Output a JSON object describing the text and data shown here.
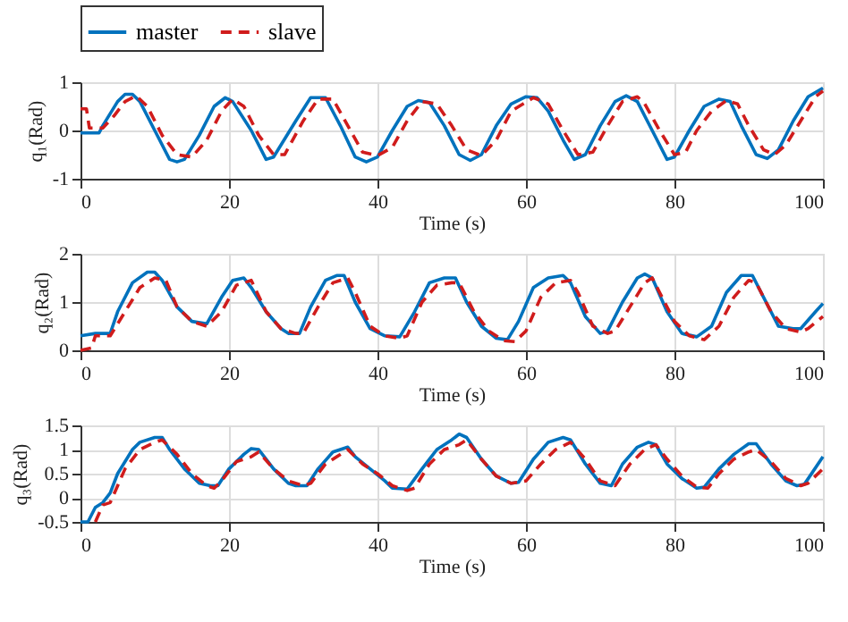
{
  "chart_data": [
    {
      "type": "line",
      "xlabel": "Time (s)",
      "ylabel": "q₁(Rad)",
      "xlim": [
        0,
        100
      ],
      "xticks": [
        0,
        20,
        40,
        60,
        80,
        100
      ],
      "ylim": [
        -1,
        1
      ],
      "yticks": [
        -1,
        0,
        1
      ],
      "grid": true,
      "legend": "top left",
      "series": [
        {
          "name": "master",
          "color": "#0072bd",
          "line_style": "solid",
          "x": [
            0,
            2.5,
            3,
            5,
            6,
            7,
            8,
            10,
            12,
            13,
            14,
            16,
            18,
            19.5,
            20.5,
            23,
            25,
            26,
            29,
            31,
            33,
            35,
            37,
            38.5,
            40,
            42,
            44,
            45.5,
            47,
            49,
            51,
            52.5,
            54,
            56,
            58,
            60,
            61.5,
            63,
            65,
            66.5,
            68,
            70,
            72,
            73.5,
            75,
            77,
            79,
            80,
            82,
            84,
            86,
            87.5,
            89,
            91,
            92.5,
            94,
            96,
            98,
            100
          ],
          "values": [
            -0.05,
            -0.05,
            0.1,
            0.6,
            0.75,
            0.75,
            0.6,
            0,
            -0.6,
            -0.65,
            -0.6,
            -0.1,
            0.5,
            0.68,
            0.6,
            0,
            -0.6,
            -0.55,
            0.2,
            0.68,
            0.68,
            0.1,
            -0.55,
            -0.65,
            -0.55,
            0,
            0.5,
            0.62,
            0.58,
            0.1,
            -0.5,
            -0.62,
            -0.5,
            0.1,
            0.55,
            0.7,
            0.68,
            0.4,
            -0.2,
            -0.6,
            -0.5,
            0.1,
            0.6,
            0.72,
            0.6,
            0,
            -0.6,
            -0.55,
            0,
            0.5,
            0.65,
            0.6,
            0.1,
            -0.5,
            -0.58,
            -0.4,
            0.2,
            0.7,
            0.88
          ]
        },
        {
          "name": "slave",
          "color": "#d01c1c",
          "line_style": "dashed",
          "x": [
            0,
            0.8,
            1.2,
            3,
            4.5,
            6,
            7.5,
            9,
            11,
            13,
            15,
            17,
            19,
            20.5,
            22,
            24,
            26,
            27.5,
            30,
            32,
            34,
            36,
            38,
            40,
            42,
            44,
            46,
            48,
            50,
            52,
            54,
            56,
            58,
            61,
            63,
            65,
            67,
            69,
            71,
            73,
            75,
            76,
            78,
            80,
            81.5,
            83,
            85,
            87,
            88.5,
            90,
            92,
            93.5,
            95,
            97,
            99,
            100
          ],
          "values": [
            0.45,
            0.45,
            0.05,
            0.05,
            0.3,
            0.6,
            0.72,
            0.5,
            -0.1,
            -0.5,
            -0.55,
            -0.2,
            0.4,
            0.65,
            0.5,
            -0.1,
            -0.5,
            -0.5,
            0.2,
            0.65,
            0.65,
            0.1,
            -0.45,
            -0.52,
            -0.35,
            0.2,
            0.6,
            0.55,
            0.1,
            -0.4,
            -0.52,
            -0.2,
            0.4,
            0.68,
            0.55,
            0,
            -0.5,
            -0.45,
            0.1,
            0.6,
            0.7,
            0.55,
            0,
            -0.5,
            -0.45,
            0,
            0.4,
            0.62,
            0.55,
            0.1,
            -0.4,
            -0.5,
            -0.3,
            0.2,
            0.7,
            0.82
          ]
        }
      ]
    },
    {
      "type": "line",
      "xlabel": "Time (s)",
      "ylabel": "q₂(Rad)",
      "xlim": [
        0,
        100
      ],
      "xticks": [
        0,
        20,
        40,
        60,
        80,
        100
      ],
      "ylim": [
        0,
        2
      ],
      "yticks": [
        0,
        1,
        2
      ],
      "grid": true,
      "series": [
        {
          "color": "#0072bd",
          "line_style": "solid",
          "x": [
            0,
            2,
            4,
            5,
            7,
            9,
            10,
            11,
            13,
            15,
            17,
            19,
            20.5,
            22,
            23,
            25,
            27,
            28,
            29.5,
            31,
            33,
            34.5,
            35.5,
            37,
            39,
            41,
            43,
            45,
            47,
            49,
            50.5,
            52,
            54,
            56,
            57.5,
            59,
            61,
            63,
            65,
            66,
            68,
            70,
            71,
            73,
            75,
            76,
            77,
            79,
            81,
            83,
            85,
            87,
            89,
            90.5,
            92,
            94,
            96,
            97,
            99,
            100
          ],
          "values": [
            0.3,
            0.35,
            0.35,
            0.8,
            1.4,
            1.62,
            1.62,
            1.45,
            0.9,
            0.6,
            0.55,
            1.1,
            1.45,
            1.5,
            1.3,
            0.8,
            0.45,
            0.35,
            0.35,
            0.9,
            1.45,
            1.55,
            1.55,
            1.0,
            0.45,
            0.3,
            0.28,
            0.8,
            1.4,
            1.5,
            1.5,
            1.0,
            0.5,
            0.25,
            0.22,
            0.6,
            1.3,
            1.5,
            1.55,
            1.4,
            0.7,
            0.35,
            0.4,
            1.0,
            1.5,
            1.58,
            1.5,
            0.8,
            0.35,
            0.28,
            0.5,
            1.2,
            1.55,
            1.55,
            1.1,
            0.5,
            0.45,
            0.45,
            0.8,
            0.97
          ]
        },
        {
          "color": "#d01c1c",
          "line_style": "dashed",
          "x": [
            0,
            1.5,
            2,
            4,
            6,
            8,
            10,
            11.5,
            13,
            15,
            17,
            19,
            21,
            23,
            25,
            27,
            29,
            30,
            32,
            34,
            36,
            37,
            39,
            41,
            43,
            44,
            46,
            48,
            50,
            51,
            53,
            55,
            57,
            58.5,
            60,
            62,
            64,
            66,
            67,
            69,
            71,
            72,
            74,
            76,
            77,
            78,
            80,
            82,
            84,
            86,
            88,
            90,
            91,
            93,
            95,
            97,
            98,
            100
          ],
          "values": [
            0,
            0.05,
            0.3,
            0.3,
            0.8,
            1.3,
            1.5,
            1.45,
            0.9,
            0.6,
            0.5,
            0.8,
            1.35,
            1.45,
            0.8,
            0.45,
            0.35,
            0.35,
            0.9,
            1.4,
            1.5,
            1.2,
            0.5,
            0.3,
            0.25,
            0.3,
            1.0,
            1.35,
            1.4,
            1.4,
            0.8,
            0.4,
            0.2,
            0.18,
            0.4,
            1.1,
            1.4,
            1.45,
            1.2,
            0.5,
            0.35,
            0.4,
            0.9,
            1.4,
            1.5,
            1.2,
            0.6,
            0.3,
            0.22,
            0.5,
            1.1,
            1.45,
            1.4,
            0.8,
            0.45,
            0.38,
            0.45,
            0.7
          ]
        }
      ]
    },
    {
      "type": "line",
      "xlabel": "Time (s)",
      "ylabel": "q₃(Rad)",
      "xlim": [
        0,
        100
      ],
      "xticks": [
        0,
        20,
        40,
        60,
        80,
        100
      ],
      "ylim": [
        -0.5,
        1.5
      ],
      "yticks": [
        -0.5,
        0,
        0.5,
        1,
        1.5
      ],
      "grid": true,
      "series": [
        {
          "color": "#0072bd",
          "line_style": "solid",
          "x": [
            0,
            1,
            2,
            3,
            4,
            5,
            7,
            8,
            10,
            11,
            12,
            14,
            16,
            17.5,
            18.5,
            20,
            22,
            23,
            24,
            26,
            28,
            29,
            30.5,
            32,
            34,
            36,
            37,
            39,
            41,
            42,
            44,
            46,
            48,
            50,
            51,
            52,
            54,
            56,
            58,
            59,
            61,
            63,
            65,
            66,
            68,
            70,
            71.5,
            73,
            75,
            76.5,
            77.5,
            79,
            81,
            83,
            84,
            86,
            88,
            90,
            91,
            93,
            95,
            96.5,
            97.5,
            100
          ],
          "values": [
            -0.5,
            -0.5,
            -0.2,
            -0.1,
            0.1,
            0.5,
            1.0,
            1.15,
            1.25,
            1.25,
            1.0,
            0.6,
            0.3,
            0.25,
            0.25,
            0.6,
            0.9,
            1.02,
            1.0,
            0.6,
            0.3,
            0.25,
            0.25,
            0.6,
            0.95,
            1.05,
            0.85,
            0.6,
            0.35,
            0.2,
            0.18,
            0.6,
            1.0,
            1.2,
            1.32,
            1.25,
            0.8,
            0.45,
            0.3,
            0.32,
            0.8,
            1.15,
            1.25,
            1.2,
            0.7,
            0.3,
            0.25,
            0.7,
            1.05,
            1.15,
            1.1,
            0.7,
            0.4,
            0.2,
            0.22,
            0.6,
            0.9,
            1.12,
            1.12,
            0.7,
            0.35,
            0.25,
            0.28,
            0.85
          ]
        },
        {
          "color": "#d01c1c",
          "line_style": "dashed",
          "x": [
            2,
            3,
            4,
            6,
            8,
            10,
            11,
            13,
            15,
            17,
            18,
            19,
            21,
            23,
            24,
            26,
            28,
            30,
            31,
            33,
            35,
            36,
            38,
            40,
            42,
            44,
            45,
            47,
            49,
            51,
            52,
            54,
            56,
            58,
            60,
            62,
            64,
            66,
            68,
            70,
            72,
            74,
            76,
            77.5,
            79,
            81,
            83,
            84.5,
            86,
            88,
            90,
            91,
            93,
            95,
            97,
            98,
            100
          ],
          "values": [
            -0.5,
            -0.15,
            -0.1,
            0.6,
            1.0,
            1.15,
            1.2,
            0.9,
            0.5,
            0.25,
            0.2,
            0.35,
            0.75,
            0.85,
            0.95,
            0.6,
            0.35,
            0.25,
            0.3,
            0.7,
            0.9,
            1.0,
            0.7,
            0.5,
            0.25,
            0.15,
            0.2,
            0.7,
            1.0,
            1.1,
            1.2,
            0.8,
            0.45,
            0.3,
            0.35,
            0.7,
            1.0,
            1.15,
            0.8,
            0.35,
            0.25,
            0.7,
            1.0,
            1.1,
            0.8,
            0.45,
            0.22,
            0.2,
            0.5,
            0.8,
            0.95,
            1.0,
            0.75,
            0.4,
            0.25,
            0.3,
            0.6
          ]
        }
      ]
    }
  ]
}
